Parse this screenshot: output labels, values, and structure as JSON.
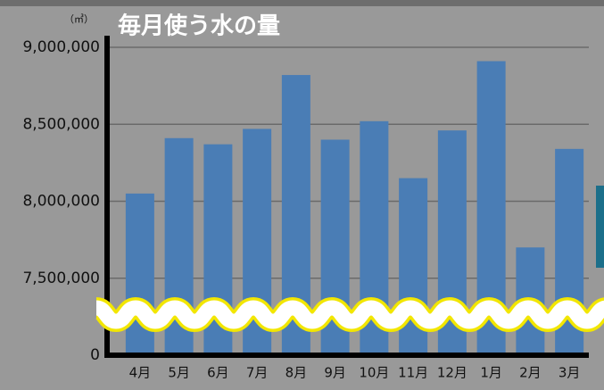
{
  "chart_data": {
    "type": "bar",
    "title": "毎月使う水の量",
    "y_unit": "（㎥）",
    "categories": [
      "4月",
      "5月",
      "6月",
      "7月",
      "8月",
      "9月",
      "10月",
      "11月",
      "12月",
      "1月",
      "2月",
      "3月"
    ],
    "values": [
      8050000,
      8410000,
      8370000,
      8470000,
      8820000,
      8400000,
      8520000,
      8150000,
      8460000,
      8910000,
      7700000,
      8340000
    ],
    "color": "#4a7db5",
    "ylim": [
      0,
      9000000
    ],
    "y_break": [
      0,
      7000000
    ],
    "yticks": [
      {
        "value": 0,
        "label": "0"
      },
      {
        "value": 7500000,
        "label": "7,500,000"
      },
      {
        "value": 8000000,
        "label": "8,000,000"
      },
      {
        "value": 8500000,
        "label": "8,500,000"
      },
      {
        "value": 9000000,
        "label": "9,000,000"
      }
    ],
    "grid": true
  }
}
